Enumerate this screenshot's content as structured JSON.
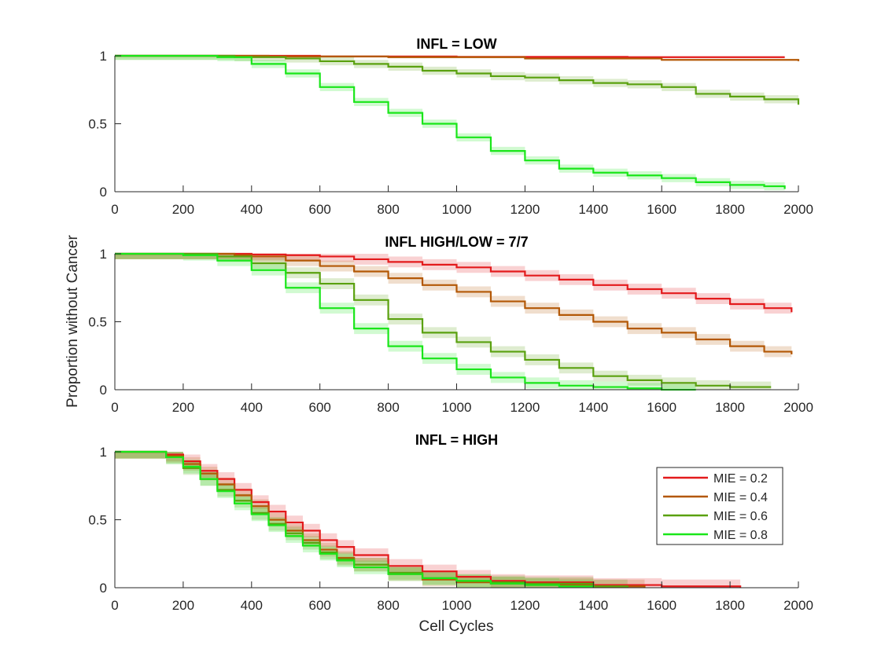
{
  "figure": {
    "ylabel": "Proportion without Cancer",
    "xlabel": "Cell Cycles"
  },
  "legend": {
    "placement": "right-inside-bottom-panel",
    "entries": [
      {
        "label": "MIE = 0.2",
        "color": "#e31a1c"
      },
      {
        "label": "MIE = 0.4",
        "color": "#b35806"
      },
      {
        "label": "MIE = 0.6",
        "color": "#5aa10f"
      },
      {
        "label": "MIE = 0.8",
        "color": "#19e619"
      }
    ]
  },
  "chart_data": [
    {
      "type": "line",
      "title": "INFL = LOW",
      "xlim": [
        0,
        2000
      ],
      "ylim": [
        0,
        1
      ],
      "xticks": [
        "0",
        "200",
        "400",
        "600",
        "800",
        "1000",
        "1200",
        "1400",
        "1600",
        "1800",
        "2000"
      ],
      "yticks": [
        "0",
        "0.5",
        "1"
      ],
      "grid": false,
      "series": [
        {
          "name": "MIE = 0.2",
          "color": "#e31a1c",
          "band": 0.005,
          "x": [
            0,
            400,
            600,
            1000,
            1500,
            1960
          ],
          "y": [
            1,
            1,
            0.995,
            0.992,
            0.99,
            0.99
          ]
        },
        {
          "name": "MIE = 0.4",
          "color": "#b35806",
          "band": 0.008,
          "x": [
            0,
            450,
            800,
            1200,
            1600,
            2000
          ],
          "y": [
            1,
            0.995,
            0.99,
            0.98,
            0.97,
            0.96
          ]
        },
        {
          "name": "MIE = 0.6",
          "color": "#5aa10f",
          "band": 0.03,
          "x": [
            0,
            350,
            500,
            600,
            700,
            800,
            900,
            1000,
            1100,
            1200,
            1300,
            1400,
            1500,
            1600,
            1700,
            1800,
            1900,
            2000
          ],
          "y": [
            1,
            0.99,
            0.98,
            0.96,
            0.94,
            0.92,
            0.89,
            0.87,
            0.85,
            0.84,
            0.82,
            0.8,
            0.79,
            0.77,
            0.72,
            0.7,
            0.68,
            0.64
          ]
        },
        {
          "name": "MIE = 0.8",
          "color": "#19e619",
          "band": 0.03,
          "x": [
            0,
            300,
            400,
            500,
            600,
            700,
            800,
            900,
            1000,
            1100,
            1200,
            1300,
            1400,
            1500,
            1600,
            1700,
            1800,
            1900,
            1960
          ],
          "y": [
            1,
            0.99,
            0.94,
            0.87,
            0.77,
            0.66,
            0.58,
            0.5,
            0.4,
            0.3,
            0.23,
            0.17,
            0.14,
            0.12,
            0.1,
            0.07,
            0.05,
            0.04,
            0.02
          ]
        }
      ]
    },
    {
      "type": "line",
      "title": "INFL HIGH/LOW = 7/7",
      "xlim": [
        0,
        2000
      ],
      "ylim": [
        0,
        1
      ],
      "xticks": [
        "0",
        "200",
        "400",
        "600",
        "800",
        "1000",
        "1200",
        "1400",
        "1600",
        "1800",
        "2000"
      ],
      "yticks": [
        "0",
        "0.5",
        "1"
      ],
      "grid": false,
      "series": [
        {
          "name": "MIE = 0.2",
          "color": "#e31a1c",
          "band": 0.04,
          "x": [
            0,
            300,
            400,
            500,
            600,
            700,
            800,
            900,
            1000,
            1100,
            1200,
            1300,
            1400,
            1500,
            1600,
            1700,
            1800,
            1900,
            1980
          ],
          "y": [
            1,
            1,
            0.995,
            0.99,
            0.98,
            0.96,
            0.94,
            0.92,
            0.9,
            0.87,
            0.84,
            0.81,
            0.77,
            0.74,
            0.71,
            0.67,
            0.63,
            0.6,
            0.57
          ]
        },
        {
          "name": "MIE = 0.4",
          "color": "#b35806",
          "band": 0.04,
          "x": [
            0,
            250,
            350,
            400,
            500,
            600,
            700,
            800,
            900,
            1000,
            1100,
            1200,
            1300,
            1400,
            1500,
            1600,
            1700,
            1800,
            1900,
            1980
          ],
          "y": [
            1,
            1,
            0.99,
            0.98,
            0.95,
            0.91,
            0.87,
            0.82,
            0.77,
            0.72,
            0.65,
            0.6,
            0.55,
            0.5,
            0.45,
            0.42,
            0.37,
            0.32,
            0.28,
            0.26
          ]
        },
        {
          "name": "MIE = 0.6",
          "color": "#5aa10f",
          "band": 0.04,
          "x": [
            0,
            200,
            300,
            400,
            500,
            600,
            700,
            800,
            900,
            1000,
            1100,
            1200,
            1300,
            1400,
            1500,
            1600,
            1700,
            1800,
            1920
          ],
          "y": [
            1,
            1,
            0.98,
            0.93,
            0.86,
            0.78,
            0.66,
            0.52,
            0.42,
            0.35,
            0.28,
            0.22,
            0.16,
            0.1,
            0.07,
            0.05,
            0.03,
            0.02,
            0.02
          ]
        },
        {
          "name": "MIE = 0.8",
          "color": "#19e619",
          "band": 0.04,
          "x": [
            0,
            200,
            300,
            400,
            500,
            600,
            700,
            800,
            900,
            1000,
            1100,
            1200,
            1300,
            1400,
            1500,
            1600,
            1700
          ],
          "y": [
            1,
            0.99,
            0.95,
            0.88,
            0.75,
            0.6,
            0.45,
            0.32,
            0.23,
            0.15,
            0.09,
            0.05,
            0.03,
            0.02,
            0.01,
            0.0,
            0.0
          ]
        }
      ]
    },
    {
      "type": "line",
      "title": "INFL = HIGH",
      "xlim": [
        0,
        2000
      ],
      "ylim": [
        0,
        1
      ],
      "xticks": [
        "0",
        "200",
        "400",
        "600",
        "800",
        "1000",
        "1200",
        "1400",
        "1600",
        "1800",
        "2000"
      ],
      "yticks": [
        "0",
        "0.5",
        "1"
      ],
      "grid": false,
      "series": [
        {
          "name": "MIE = 0.2",
          "color": "#e31a1c",
          "band": 0.05,
          "x": [
            0,
            100,
            150,
            200,
            250,
            300,
            350,
            400,
            450,
            500,
            550,
            600,
            650,
            700,
            800,
            900,
            1000,
            1100,
            1200,
            1400,
            1600,
            1830
          ],
          "y": [
            1,
            1,
            0.98,
            0.93,
            0.86,
            0.8,
            0.72,
            0.63,
            0.56,
            0.48,
            0.42,
            0.35,
            0.3,
            0.24,
            0.16,
            0.12,
            0.08,
            0.05,
            0.04,
            0.02,
            0.01,
            0.0
          ]
        },
        {
          "name": "MIE = 0.4",
          "color": "#b35806",
          "band": 0.05,
          "x": [
            0,
            100,
            150,
            200,
            250,
            300,
            350,
            400,
            450,
            500,
            550,
            600,
            650,
            700,
            800,
            900,
            1000,
            1100,
            1200,
            1400,
            1550
          ],
          "y": [
            1,
            1,
            0.97,
            0.91,
            0.84,
            0.76,
            0.68,
            0.6,
            0.5,
            0.42,
            0.35,
            0.28,
            0.22,
            0.17,
            0.1,
            0.06,
            0.04,
            0.03,
            0.02,
            0.01,
            0.0
          ]
        },
        {
          "name": "MIE = 0.6",
          "color": "#5aa10f",
          "band": 0.05,
          "x": [
            0,
            100,
            150,
            200,
            250,
            300,
            350,
            400,
            450,
            500,
            550,
            600,
            650,
            700,
            800,
            900,
            1000,
            1100,
            1200,
            1400,
            1500
          ],
          "y": [
            1,
            1,
            0.96,
            0.88,
            0.8,
            0.72,
            0.64,
            0.55,
            0.47,
            0.4,
            0.33,
            0.26,
            0.21,
            0.17,
            0.11,
            0.07,
            0.05,
            0.04,
            0.03,
            0.01,
            0.0
          ]
        },
        {
          "name": "MIE = 0.8",
          "color": "#19e619",
          "band": 0.05,
          "x": [
            0,
            100,
            150,
            200,
            250,
            300,
            350,
            400,
            450,
            500,
            550,
            600,
            650,
            700,
            800,
            900,
            1000,
            1100,
            1200,
            1300,
            1400
          ],
          "y": [
            1,
            1,
            0.96,
            0.89,
            0.8,
            0.71,
            0.62,
            0.54,
            0.46,
            0.38,
            0.31,
            0.25,
            0.2,
            0.15,
            0.1,
            0.07,
            0.05,
            0.03,
            0.02,
            0.01,
            0.0
          ]
        }
      ]
    }
  ]
}
